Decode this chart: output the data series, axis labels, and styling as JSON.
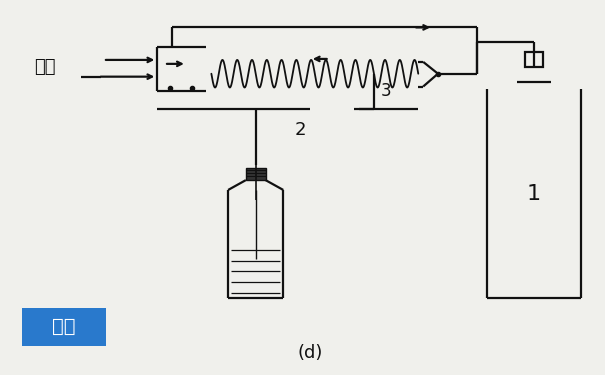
{
  "bg_color": "#f0f0ec",
  "title": "(d)",
  "label_zaiq": "载气",
  "label_jinyang": "进样",
  "label_1": "1",
  "label_2": "2",
  "label_3": "3",
  "jinyang_bg": "#2979cc",
  "jinyang_text_color": "#ffffff",
  "line_color": "#111111",
  "text_color": "#111111",
  "lw": 1.6
}
